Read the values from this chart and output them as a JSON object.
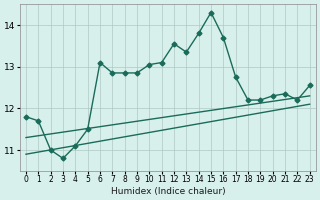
{
  "xlabel": "Humidex (Indice chaleur)",
  "ylabel": "",
  "bg_color": "#d8f0ec",
  "grid_color": "#b0c8c4",
  "line_color": "#1a6b5a",
  "line_color2": "#1a6b5a",
  "main_x": [
    0,
    1,
    2,
    3,
    4,
    5,
    6,
    7,
    8,
    9,
    10,
    11,
    12,
    13,
    14,
    15,
    16,
    17,
    18,
    19,
    20,
    21,
    22,
    23
  ],
  "main_y": [
    11.8,
    11.7,
    11.0,
    10.8,
    11.1,
    11.5,
    13.1,
    12.85,
    12.85,
    12.85,
    13.05,
    13.1,
    13.55,
    13.35,
    13.8,
    14.3,
    13.7,
    12.75,
    12.2,
    12.2,
    12.3,
    12.35,
    12.2,
    12.55
  ],
  "line2_x": [
    0,
    23
  ],
  "line2_y": [
    11.3,
    12.3
  ],
  "line3_x": [
    0,
    23
  ],
  "line3_y": [
    10.9,
    12.1
  ],
  "xlim": [
    -0.5,
    23.5
  ],
  "ylim": [
    10.5,
    14.5
  ],
  "yticks": [
    11,
    12,
    13,
    14
  ],
  "xtick_labels": [
    "0",
    "1",
    "2",
    "3",
    "4",
    "5",
    "6",
    "7",
    "8",
    "9",
    "10",
    "11",
    "12",
    "13",
    "14",
    "15",
    "16",
    "17",
    "18",
    "19",
    "20",
    "21",
    "22",
    "23"
  ]
}
